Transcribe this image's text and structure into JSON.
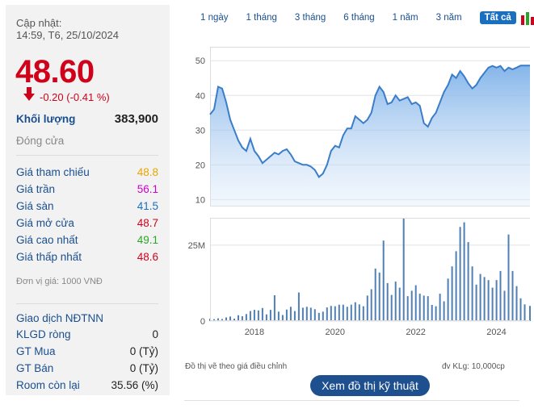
{
  "update": {
    "label": "Cập nhật:",
    "time": "14:59, T6, 25/10/2024"
  },
  "price": {
    "value": "48.60",
    "change": "-0.20 (-0.41 %)"
  },
  "volume": {
    "label": "Khối lượng",
    "value": "383,900"
  },
  "close_label": "Đóng cửa",
  "prices": [
    {
      "label": "Giá tham chiếu",
      "value": "48.8",
      "color": "#e8a600"
    },
    {
      "label": "Giá trần",
      "value": "56.1",
      "color": "#cc00cc"
    },
    {
      "label": "Giá sàn",
      "value": "41.5",
      "color": "#1a6fbf"
    },
    {
      "label": "Giá mở cửa",
      "value": "48.7",
      "color": "#d0021b"
    },
    {
      "label": "Giá cao nhất",
      "value": "49.1",
      "color": "#2aa52a"
    },
    {
      "label": "Giá thấp nhất",
      "value": "48.6",
      "color": "#d0021b"
    }
  ],
  "unit_note": "Đơn vị giá: 1000 VNĐ",
  "foreign": {
    "title": "Giao dịch NĐTNN",
    "rows": [
      {
        "label": "KLGD ròng",
        "value": "0"
      },
      {
        "label": "GT Mua",
        "value": "0 (Tỷ)"
      },
      {
        "label": "GT Bán",
        "value": "0 (Tỷ)"
      },
      {
        "label": "Room còn lại",
        "value": "35.56 (%)"
      }
    ]
  },
  "tabs": [
    "1 ngày",
    "1 tháng",
    "3 tháng",
    "6 tháng",
    "1 năm",
    "3 năm",
    "Tất cả"
  ],
  "active_tab": "Tất cả",
  "chart_notes": {
    "left": "Đồ thị vẽ theo giá điều chỉnh",
    "right": "đv KLg: 10,000cp"
  },
  "tech_button": "Xem đồ thị kỹ thuật",
  "chart_data": [
    {
      "type": "area",
      "ylim": [
        8,
        54
      ],
      "yticks": [
        10,
        20,
        30,
        40,
        50
      ],
      "xticks": [
        "2018",
        "2020",
        "2022",
        "2024"
      ],
      "xlim": [
        2016.9,
        2024.83
      ],
      "accent": "#3a7dc9",
      "x": [
        2016.9,
        2017.0,
        2017.1,
        2017.2,
        2017.3,
        2017.4,
        2017.5,
        2017.6,
        2017.7,
        2017.8,
        2017.9,
        2018.0,
        2018.1,
        2018.2,
        2018.3,
        2018.4,
        2018.5,
        2018.6,
        2018.7,
        2018.8,
        2018.9,
        2019.0,
        2019.1,
        2019.2,
        2019.3,
        2019.4,
        2019.5,
        2019.6,
        2019.7,
        2019.8,
        2019.9,
        2020.0,
        2020.1,
        2020.2,
        2020.3,
        2020.4,
        2020.5,
        2020.6,
        2020.7,
        2020.8,
        2020.9,
        2021.0,
        2021.1,
        2021.2,
        2021.3,
        2021.4,
        2021.5,
        2021.6,
        2021.7,
        2021.8,
        2021.9,
        2022.0,
        2022.1,
        2022.2,
        2022.3,
        2022.4,
        2022.5,
        2022.6,
        2022.7,
        2022.8,
        2022.9,
        2023.0,
        2023.1,
        2023.2,
        2023.3,
        2023.4,
        2023.5,
        2023.6,
        2023.7,
        2023.8,
        2023.9,
        2024.0,
        2024.1,
        2024.2,
        2024.3,
        2024.4,
        2024.5,
        2024.6,
        2024.7,
        2024.83
      ],
      "values": [
        34.5,
        36,
        42.5,
        42,
        38,
        33,
        30,
        27,
        25,
        24,
        27.5,
        24,
        22.5,
        20.5,
        21.5,
        22.5,
        23.5,
        23,
        24,
        24.5,
        23,
        21,
        20.5,
        20,
        20,
        19.5,
        18.5,
        16.5,
        17.5,
        20,
        24,
        25.5,
        25,
        28.5,
        30.5,
        30.5,
        34,
        33,
        32,
        33,
        35,
        40,
        42.5,
        41,
        37.5,
        38,
        40,
        38.5,
        39,
        39.5,
        37.5,
        38,
        37,
        32,
        31,
        33.5,
        35,
        38,
        41,
        43,
        46,
        45,
        47,
        45.5,
        43.5,
        42,
        43,
        45,
        46.5,
        48,
        48.5,
        48,
        48.5,
        47,
        48,
        47.5,
        48,
        48.6,
        48.6,
        48.6
      ],
      "volume_ylim": [
        0,
        34
      ],
      "volume_yticks": [
        0,
        25
      ],
      "volume_ytick_labels": [
        "0",
        "25M"
      ],
      "volume": [
        0.8,
        0.6,
        0.9,
        0.7,
        1.2,
        1.5,
        0.8,
        1.9,
        1.6,
        2.3,
        3.3,
        3.7,
        3.5,
        4.3,
        2.2,
        3.7,
        8.5,
        3.1,
        2.0,
        3.8,
        4.7,
        3.3,
        9.4,
        4.4,
        4.7,
        4.4,
        3.9,
        2.7,
        3.1,
        4.5,
        5.0,
        4.9,
        5.4,
        5.4,
        4.7,
        5.4,
        6.2,
        5.5,
        4.9,
        8.4,
        10.5,
        17.3,
        16.0,
        26.5,
        12.5,
        8.6,
        13.0,
        11.0,
        34.0,
        8.2,
        10.0,
        11.8,
        9.0,
        8.4,
        8.2,
        5.3,
        4.9,
        9.0,
        6.5,
        14.0,
        18.0,
        23.0,
        31.0,
        32.5,
        26.0,
        18.0,
        12.0,
        15.5,
        14.5,
        13.5,
        11.0,
        13.5,
        16.5,
        10.0,
        28.5,
        16.5,
        11.5,
        7.5,
        5.5,
        5.0
      ]
    }
  ]
}
